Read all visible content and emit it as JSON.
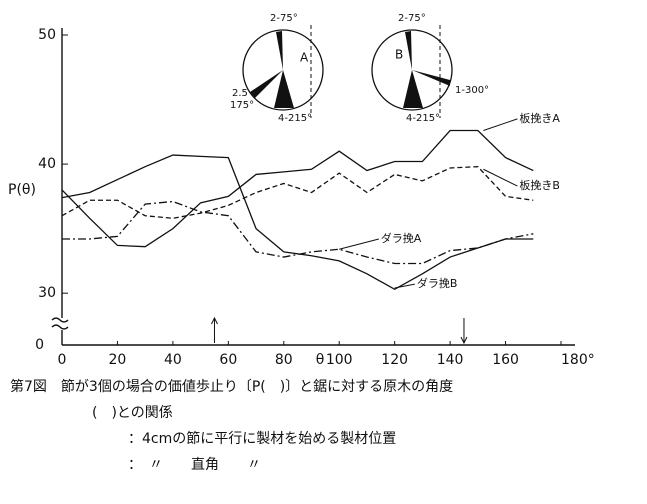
{
  "chart_data": {
    "type": "line",
    "ylabel": "P(θ)",
    "xlabel": "θ",
    "xlim": [
      0,
      180
    ],
    "xticks": [
      0,
      20,
      40,
      60,
      80,
      100,
      120,
      140,
      160,
      {
        "value": 180,
        "label": "180°"
      }
    ],
    "ylim": [
      28,
      50
    ],
    "yticks": [
      30,
      40,
      50
    ],
    "y_origin_label": "0",
    "x": [
      0,
      10,
      20,
      30,
      40,
      50,
      60,
      70,
      80,
      90,
      100,
      110,
      120,
      130,
      140,
      150,
      160,
      170
    ],
    "series": [
      {
        "name": "板挽きA",
        "color": "#111111",
        "dash": "solid",
        "values": [
          38,
          35.8,
          33.7,
          33.6,
          35,
          37,
          37.5,
          39.2,
          39.4,
          39.6,
          41,
          39.5,
          40.2,
          40.2,
          42.6,
          42.6,
          40.5,
          39.5
        ]
      },
      {
        "name": "板挽きB",
        "color": "#111111",
        "dash": "dashed",
        "values": [
          36,
          37.2,
          37.2,
          36,
          35.8,
          36.2,
          36.8,
          37.8,
          38.5,
          37.8,
          39.3,
          37.8,
          39.2,
          38.7,
          39.7,
          39.8,
          37.5,
          37.2
        ]
      },
      {
        "name": "ダラ挽A",
        "color": "#111111",
        "dash": "dashdot",
        "values": [
          34.2,
          34.2,
          34.4,
          36.9,
          37.1,
          36.3,
          36,
          33.2,
          32.8,
          33.2,
          33.4,
          32.8,
          32.3,
          32.3,
          33.3,
          33.5,
          34.2,
          34.6
        ]
      },
      {
        "name": "ダラ挽B",
        "color": "#111111",
        "dash": "solid",
        "values": [
          37.4,
          37.8,
          38.8,
          39.8,
          40.7,
          40.6,
          40.5,
          35,
          33.2,
          32.9,
          32.5,
          31.5,
          30.3,
          31.5,
          32.8,
          33.5,
          34.2,
          34.2
        ]
      }
    ],
    "arrows": [
      {
        "x": 55,
        "direction": "up"
      },
      {
        "x": 145,
        "direction": "down"
      }
    ],
    "insets": [
      {
        "label": "A",
        "notes": [
          "2-75°",
          "2.5",
          "175°",
          "4-215°"
        ]
      },
      {
        "label": "B",
        "notes": [
          "2-75°",
          "1-300°",
          "4-215°"
        ]
      }
    ],
    "caption": [
      "第7図　節が3個の場合の価値歩止り〔P(　)〕と鋸に対する原木の角度",
      "(　)との関係",
      "：4cmの節に平行に製材を始める製材位置",
      "：　〃　　直角　　〃"
    ]
  }
}
